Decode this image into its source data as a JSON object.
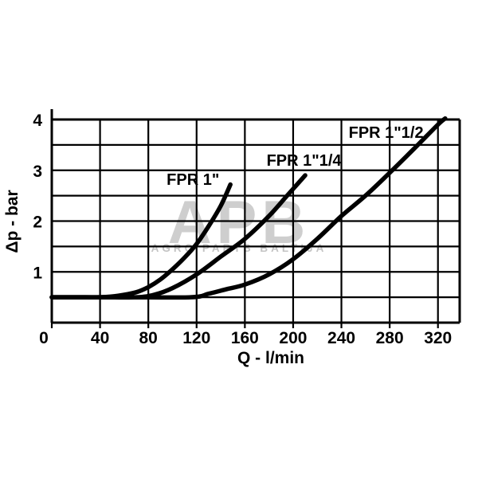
{
  "page": {
    "background": "#ffffff"
  },
  "watermark": {
    "logo": "APB",
    "subtitle": "AGRO PARTS BALTIJA",
    "color": "#9f9f9f"
  },
  "chart_data": {
    "type": "line",
    "title": "",
    "xlabel": "Q - l/min",
    "ylabel": "Δp - bar",
    "xlim": [
      0,
      338
    ],
    "ylim": [
      0,
      4
    ],
    "x_ticks": [
      0,
      40,
      80,
      120,
      160,
      200,
      240,
      280,
      320
    ],
    "y_ticks": [
      1,
      2,
      3,
      4
    ],
    "x_grid_step": 40,
    "y_grid_step": 0.5,
    "grid": true,
    "legend_position": "inline-labels",
    "line_color": "#000000",
    "series": [
      {
        "name": "FPR 1\"",
        "label_anchor": {
          "q": 117,
          "p": 2.82
        },
        "points": [
          [
            0,
            0.5
          ],
          [
            20,
            0.5
          ],
          [
            40,
            0.5
          ],
          [
            55,
            0.53
          ],
          [
            70,
            0.6
          ],
          [
            80,
            0.7
          ],
          [
            90,
            0.85
          ],
          [
            100,
            1.05
          ],
          [
            110,
            1.28
          ],
          [
            120,
            1.55
          ],
          [
            130,
            1.9
          ],
          [
            140,
            2.3
          ],
          [
            148,
            2.72
          ]
        ]
      },
      {
        "name": "FPR 1\"1/4",
        "label_anchor": {
          "q": 209,
          "p": 3.2
        },
        "points": [
          [
            0,
            0.5
          ],
          [
            40,
            0.5
          ],
          [
            70,
            0.5
          ],
          [
            85,
            0.55
          ],
          [
            100,
            0.68
          ],
          [
            120,
            0.95
          ],
          [
            140,
            1.3
          ],
          [
            160,
            1.65
          ],
          [
            180,
            2.1
          ],
          [
            195,
            2.5
          ],
          [
            210,
            2.9
          ]
        ]
      },
      {
        "name": "FPR 1\"1/2",
        "label_anchor": {
          "q": 277,
          "p": 3.75
        },
        "points": [
          [
            0,
            0.5
          ],
          [
            60,
            0.5
          ],
          [
            115,
            0.5
          ],
          [
            130,
            0.57
          ],
          [
            145,
            0.66
          ],
          [
            160,
            0.75
          ],
          [
            180,
            0.95
          ],
          [
            200,
            1.25
          ],
          [
            220,
            1.65
          ],
          [
            240,
            2.1
          ],
          [
            260,
            2.5
          ],
          [
            280,
            2.95
          ],
          [
            300,
            3.42
          ],
          [
            320,
            3.9
          ],
          [
            326,
            4.02
          ]
        ]
      }
    ]
  }
}
